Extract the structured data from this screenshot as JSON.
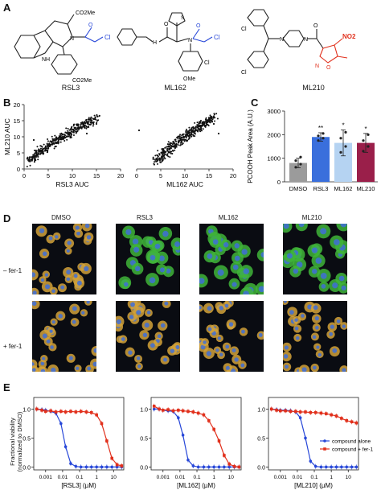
{
  "panels": {
    "a": "A",
    "b": "B",
    "c": "C",
    "d": "D",
    "e": "E"
  },
  "structures": {
    "rsl3": {
      "name": "RSL3",
      "co2me_top": "CO2Me",
      "co2me_bottom": "CO2Me",
      "cl": "Cl",
      "nh": "NH",
      "n": "N",
      "o": "O"
    },
    "ml162": {
      "name": "ML162",
      "nh": "H",
      "n": "N",
      "s": "S",
      "cl_acyl": "Cl",
      "cl_ring": "Cl",
      "ome": "OMe",
      "o1": "O",
      "o2": "O"
    },
    "ml210": {
      "name": "ML210",
      "cl_top": "Cl",
      "cl_bottom": "Cl",
      "no2": "NO2",
      "o_ring": "O",
      "n_ring": "N",
      "n1": "N",
      "n2": "N",
      "o": "O"
    }
  },
  "panel_b": {
    "chart_data": [
      {
        "type": "scatter",
        "xlabel": "RSL3 AUC",
        "ylabel": "ML210 AUC",
        "xticks": [
          0,
          5,
          10,
          15,
          20
        ],
        "yticks": [
          0,
          5,
          10,
          15,
          20
        ],
        "xlim": [
          0,
          20
        ],
        "ylim": [
          0,
          20
        ],
        "trend": {
          "x_start": 1,
          "y_start": 2,
          "x_end": 15,
          "y_end": 16
        },
        "outliers": [
          [
            13,
            11
          ],
          [
            15,
            14
          ],
          [
            2,
            9
          ],
          [
            1,
            3
          ]
        ]
      },
      {
        "type": "scatter",
        "xlabel": "ML162 AUC",
        "ylabel": "",
        "xticks": [
          0,
          5,
          10,
          15,
          20
        ],
        "yticks": [],
        "xlim": [
          0,
          20
        ],
        "ylim": [
          0,
          20
        ],
        "trend": {
          "x_start": 4,
          "y_start": 2,
          "x_end": 16,
          "y_end": 16
        },
        "outliers": [
          [
            0.5,
            12
          ],
          [
            16,
            14
          ],
          [
            17,
            11
          ]
        ]
      }
    ]
  },
  "panel_c": {
    "chart_data": {
      "type": "bar",
      "categories": [
        "DMSO",
        "RSL3",
        "ML162",
        "ML210"
      ],
      "values": [
        800,
        1900,
        1650,
        1650
      ],
      "errors": [
        200,
        180,
        550,
        400
      ],
      "points": [
        [
          620,
          750,
          900,
          1050
        ],
        [
          1750,
          1850,
          1950,
          2050
        ],
        [
          1250,
          1500,
          1850,
          2100
        ],
        [
          1300,
          1500,
          1750,
          2000
        ]
      ],
      "significance": [
        "",
        "**",
        "*",
        "*"
      ],
      "colors": [
        "#9b9b9b",
        "#3a6fdc",
        "#b5d3f2",
        "#9a1f4a"
      ],
      "ylabel": "PCOOH Peak Area (A.U.)",
      "ylim": [
        0,
        3000
      ],
      "yticks": [
        0,
        1000,
        2000,
        3000
      ]
    }
  },
  "panel_d": {
    "columns": [
      "DMSO",
      "RSL3",
      "ML162",
      "ML210"
    ],
    "rows": [
      "– fer-1",
      "+ fer-1"
    ]
  },
  "panel_e": {
    "ylabel_line1": "Fractional viability",
    "ylabel_line2": "(normalized to DMSO)",
    "legend": [
      "compound alone",
      "compound + fer-1"
    ],
    "colors": {
      "alone": "#2747d8",
      "fer": "#e1301c"
    },
    "chart_data": [
      {
        "type": "line",
        "xlabel": "[RSL3] (µM)",
        "xticks": [
          "0.001",
          "0.01",
          "0.1",
          "1",
          "10"
        ],
        "yticks": [
          "0.0",
          "0.5",
          "1.0"
        ],
        "series": [
          {
            "name": "compound alone",
            "x": [
              0.0003,
              0.0006,
              0.001,
              0.002,
              0.004,
              0.008,
              0.015,
              0.03,
              0.06,
              0.12,
              0.25,
              0.5,
              1,
              2,
              4,
              8,
              16,
              30
            ],
            "y": [
              1.0,
              0.99,
              0.98,
              0.96,
              0.93,
              0.75,
              0.35,
              0.06,
              0.01,
              0.0,
              0.0,
              0.0,
              0.0,
              0.0,
              0.0,
              0.0,
              0.0,
              0.0
            ]
          },
          {
            "name": "compound + fer-1",
            "x": [
              0.0003,
              0.0006,
              0.001,
              0.002,
              0.004,
              0.008,
              0.015,
              0.03,
              0.06,
              0.12,
              0.25,
              0.5,
              1,
              2,
              4,
              8,
              16,
              30
            ],
            "y": [
              1.0,
              0.98,
              0.96,
              0.97,
              0.95,
              0.96,
              0.95,
              0.96,
              0.95,
              0.96,
              0.95,
              0.94,
              0.9,
              0.75,
              0.45,
              0.15,
              0.04,
              0.02
            ]
          }
        ]
      },
      {
        "type": "line",
        "xlabel": "[ML162] (µM)",
        "xticks": [
          "0.001",
          "0.01",
          "0.1",
          "1",
          "10"
        ],
        "yticks": [
          "0.0",
          "0.5",
          "1.0"
        ],
        "series": [
          {
            "name": "compound alone",
            "x": [
              0.0003,
              0.0006,
              0.001,
              0.002,
              0.004,
              0.008,
              0.015,
              0.03,
              0.06,
              0.12,
              0.25,
              0.5,
              1,
              2,
              4,
              8,
              16,
              30
            ],
            "y": [
              1.0,
              1.0,
              0.98,
              0.97,
              0.96,
              0.85,
              0.55,
              0.12,
              0.02,
              0.0,
              0.0,
              0.0,
              0.0,
              0.0,
              0.0,
              0.0,
              0.0,
              0.0
            ]
          },
          {
            "name": "compound + fer-1",
            "x": [
              0.0003,
              0.0006,
              0.001,
              0.002,
              0.004,
              0.008,
              0.015,
              0.03,
              0.06,
              0.12,
              0.25,
              0.5,
              1,
              2,
              4,
              8,
              16,
              30
            ],
            "y": [
              1.05,
              1.0,
              0.98,
              0.99,
              0.97,
              0.98,
              0.97,
              0.96,
              0.95,
              0.93,
              0.9,
              0.8,
              0.65,
              0.45,
              0.2,
              0.05,
              0.01,
              0.0
            ]
          }
        ]
      },
      {
        "type": "line",
        "xlabel": "[ML210] (µM)",
        "xticks": [
          "0.001",
          "0.01",
          "0.1",
          "1",
          "10"
        ],
        "yticks": [
          "0.0",
          "0.5",
          "1.0"
        ],
        "series": [
          {
            "name": "compound alone",
            "x": [
              0.0003,
              0.0006,
              0.001,
              0.002,
              0.004,
              0.008,
              0.015,
              0.03,
              0.06,
              0.12,
              0.25,
              0.5,
              1,
              2,
              4,
              8,
              16,
              30
            ],
            "y": [
              1.0,
              0.99,
              0.98,
              0.98,
              0.97,
              0.95,
              0.85,
              0.5,
              0.1,
              0.01,
              0.0,
              0.0,
              0.0,
              0.0,
              0.0,
              0.0,
              0.0,
              0.0
            ]
          },
          {
            "name": "compound + fer-1",
            "x": [
              0.0003,
              0.0006,
              0.001,
              0.002,
              0.004,
              0.008,
              0.015,
              0.03,
              0.06,
              0.12,
              0.25,
              0.5,
              1,
              2,
              4,
              8,
              16,
              30
            ],
            "y": [
              1.0,
              0.98,
              0.97,
              0.97,
              0.96,
              0.96,
              0.95,
              0.95,
              0.94,
              0.94,
              0.93,
              0.92,
              0.9,
              0.88,
              0.84,
              0.8,
              0.78,
              0.76
            ]
          }
        ]
      }
    ]
  }
}
